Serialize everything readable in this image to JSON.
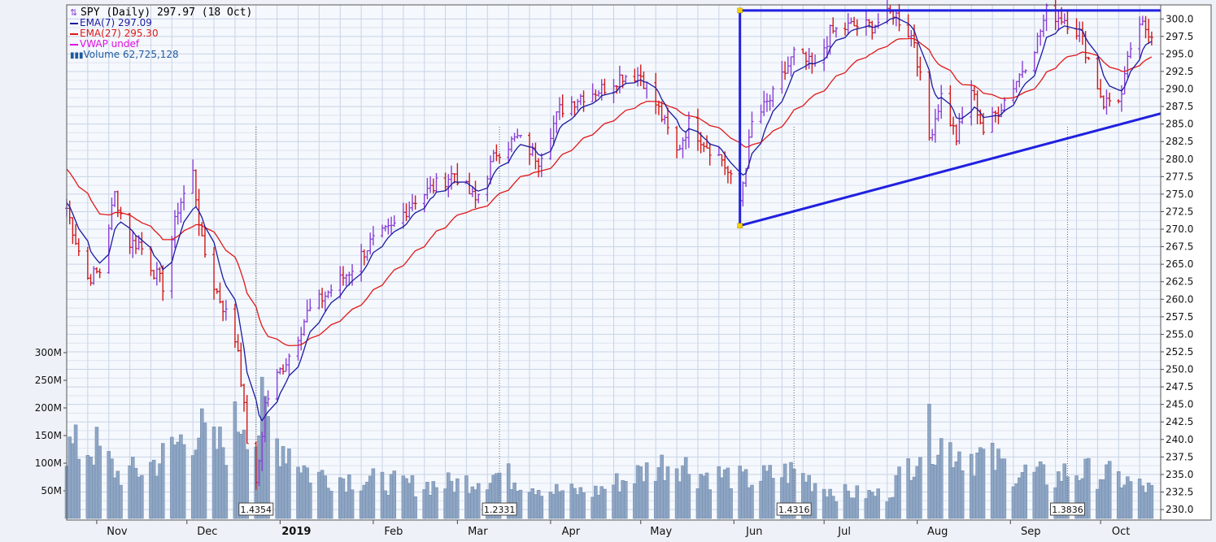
{
  "legend": {
    "title": "SPY (Daily) 297.97 (18 Oct)",
    "ema7": "EMA(7) 297.09",
    "ema27": "EMA(27) 295.30",
    "vwap": "VWAP undef",
    "volume": "Volume 62,725,128"
  },
  "colors": {
    "up_bar": "#8a3fd6",
    "down_bar": "#d01818",
    "ema7": "#1a1aa0",
    "ema27": "#e01818",
    "vwap": "#e010e0",
    "volume_fill": "#8ea6c4",
    "trendline": "#2020e0",
    "grid": "#c8d3e6",
    "plot_bg": "#f5f8fd"
  },
  "chart_data": {
    "type": "ohlc",
    "title": "SPY (Daily) 297.97 (18 Oct)",
    "price_axis": {
      "ylim": [
        228.5,
        302
      ],
      "ticks": [
        "230.0",
        "232.5",
        "235.0",
        "237.5",
        "240.0",
        "242.5",
        "245.0",
        "247.5",
        "250.0",
        "252.5",
        "255.0",
        "257.5",
        "260.0",
        "262.5",
        "265.0",
        "267.5",
        "270.0",
        "272.5",
        "275.0",
        "277.5",
        "280.0",
        "282.5",
        "285.0",
        "287.5",
        "290.0",
        "292.5",
        "295.0",
        "297.5",
        "300.0"
      ]
    },
    "volume_axis": {
      "ticks": [
        "50M",
        "100M",
        "150M",
        "200M",
        "250M",
        "300M"
      ]
    },
    "x_axis": {
      "months": [
        {
          "label": "Nov",
          "x": "2018-11-01"
        },
        {
          "label": "Dec",
          "x": "2018-12-01"
        },
        {
          "label": "2019",
          "x": "2019-01-01",
          "bold": true
        },
        {
          "label": "Feb",
          "x": "2019-02-01"
        },
        {
          "label": "Mar",
          "x": "2019-03-01"
        },
        {
          "label": "Apr",
          "x": "2019-04-01"
        },
        {
          "label": "May",
          "x": "2019-05-01"
        },
        {
          "label": "Jun",
          "x": "2019-06-01"
        },
        {
          "label": "Jul",
          "x": "2019-07-01"
        },
        {
          "label": "Aug",
          "x": "2019-08-01"
        },
        {
          "label": "Sep",
          "x": "2019-09-01"
        },
        {
          "label": "Oct",
          "x": "2019-10-01"
        }
      ]
    },
    "annotations": [
      {
        "label": "1.4354",
        "x": "2018-12-24"
      },
      {
        "label": "1.2331",
        "x": "2019-03-15"
      },
      {
        "label": "1.4316",
        "x": "2019-06-21"
      },
      {
        "label": "1.3836",
        "x": "2019-09-20"
      }
    ],
    "trendlines": [
      {
        "from": {
          "x": "2019-06-03",
          "y": 301.2
        },
        "to": {
          "x": "2019-10-21",
          "y": 301.2
        }
      },
      {
        "from": {
          "x": "2019-06-03",
          "y": 270.5
        },
        "to": {
          "x": "2019-06-03",
          "y": 301.2
        }
      },
      {
        "from": {
          "x": "2019-06-03",
          "y": 270.5
        },
        "to": {
          "x": "2019-10-21",
          "y": 286.5
        }
      }
    ],
    "close_path": [
      [
        "2018-10-22",
        273
      ],
      [
        "2018-10-26",
        267
      ],
      [
        "2018-10-29",
        263
      ],
      [
        "2018-11-02",
        264
      ],
      [
        "2018-11-07",
        275
      ],
      [
        "2018-11-12",
        268
      ],
      [
        "2018-11-15",
        268
      ],
      [
        "2018-11-20",
        264
      ],
      [
        "2018-11-23",
        262
      ],
      [
        "2018-11-28",
        273
      ],
      [
        "2018-12-03",
        278
      ],
      [
        "2018-12-06",
        268
      ],
      [
        "2018-12-10",
        262
      ],
      [
        "2018-12-14",
        258
      ],
      [
        "2018-12-18",
        253
      ],
      [
        "2018-12-21",
        240
      ],
      [
        "2018-12-24",
        233
      ],
      [
        "2018-12-27",
        245
      ],
      [
        "2018-12-31",
        249
      ],
      [
        "2019-01-04",
        252
      ],
      [
        "2019-01-10",
        258
      ],
      [
        "2019-01-17",
        261
      ],
      [
        "2019-01-24",
        264
      ],
      [
        "2019-01-31",
        268
      ],
      [
        "2019-02-07",
        270
      ],
      [
        "2019-02-14",
        274
      ],
      [
        "2019-02-21",
        276
      ],
      [
        "2019-02-28",
        278
      ],
      [
        "2019-03-07",
        274
      ],
      [
        "2019-03-14",
        281
      ],
      [
        "2019-03-21",
        283
      ],
      [
        "2019-03-28",
        280
      ],
      [
        "2019-04-04",
        287
      ],
      [
        "2019-04-11",
        289
      ],
      [
        "2019-04-18",
        290
      ],
      [
        "2019-04-25",
        292
      ],
      [
        "2019-05-01",
        292
      ],
      [
        "2019-05-07",
        287
      ],
      [
        "2019-05-13",
        281
      ],
      [
        "2019-05-17",
        285
      ],
      [
        "2019-05-23",
        282
      ],
      [
        "2019-05-28",
        280
      ],
      [
        "2019-06-03",
        274
      ],
      [
        "2019-06-07",
        285
      ],
      [
        "2019-06-14",
        289
      ],
      [
        "2019-06-21",
        295
      ],
      [
        "2019-06-28",
        293
      ],
      [
        "2019-07-03",
        298
      ],
      [
        "2019-07-10",
        299
      ],
      [
        "2019-07-17",
        299
      ],
      [
        "2019-07-24",
        301
      ],
      [
        "2019-07-31",
        297
      ],
      [
        "2019-08-05",
        283
      ],
      [
        "2019-08-09",
        289
      ],
      [
        "2019-08-14",
        283
      ],
      [
        "2019-08-19",
        290
      ],
      [
        "2019-08-23",
        284
      ],
      [
        "2019-08-28",
        287
      ],
      [
        "2019-09-04",
        292
      ],
      [
        "2019-09-10",
        297
      ],
      [
        "2019-09-13",
        301
      ],
      [
        "2019-09-19",
        300
      ],
      [
        "2019-09-24",
        298
      ],
      [
        "2019-10-02",
        288
      ],
      [
        "2019-10-08",
        289
      ],
      [
        "2019-10-11",
        296
      ],
      [
        "2019-10-15",
        299
      ],
      [
        "2019-10-18",
        298
      ]
    ],
    "volume_peaks": [
      [
        "2018-11-01",
        150
      ],
      [
        "2018-11-08",
        95
      ],
      [
        "2018-11-15",
        100
      ],
      [
        "2018-11-23",
        130
      ],
      [
        "2018-12-04",
        195
      ],
      [
        "2018-12-10",
        150
      ],
      [
        "2018-12-14",
        160
      ],
      [
        "2018-12-20",
        230
      ],
      [
        "2018-12-24",
        170
      ],
      [
        "2018-12-26",
        225
      ],
      [
        "2018-12-31",
        165
      ],
      [
        "2019-01-04",
        150
      ],
      [
        "2019-01-11",
        95
      ],
      [
        "2019-01-18",
        90
      ],
      [
        "2019-01-25",
        85
      ],
      [
        "2019-02-01",
        80
      ],
      [
        "2019-02-15",
        70
      ],
      [
        "2019-03-01",
        75
      ],
      [
        "2019-03-08",
        85
      ],
      [
        "2019-03-15",
        95
      ],
      [
        "2019-04-01",
        60
      ],
      [
        "2019-04-15",
        55
      ],
      [
        "2019-05-06",
        110
      ],
      [
        "2019-05-13",
        125
      ],
      [
        "2019-05-20",
        95
      ],
      [
        "2019-05-31",
        90
      ],
      [
        "2019-06-05",
        80
      ],
      [
        "2019-06-21",
        100
      ],
      [
        "2019-07-05",
        55
      ],
      [
        "2019-07-22",
        50
      ],
      [
        "2019-08-05",
        180
      ],
      [
        "2019-08-12",
        150
      ],
      [
        "2019-08-23",
        130
      ],
      [
        "2019-09-03",
        100
      ],
      [
        "2019-09-16",
        85
      ],
      [
        "2019-09-20",
        100
      ],
      [
        "2019-10-02",
        95
      ],
      [
        "2019-10-09",
        80
      ],
      [
        "2019-10-18",
        60
      ]
    ],
    "series": [
      {
        "name": "EMA(7) 297.09",
        "key": "ema7"
      },
      {
        "name": "EMA(27) 295.30",
        "key": "ema27"
      },
      {
        "name": "VWAP undef",
        "key": "vwap"
      },
      {
        "name": "Volume 62,725,128",
        "key": "volume"
      }
    ],
    "grid": true,
    "legend_position": "top-left"
  }
}
